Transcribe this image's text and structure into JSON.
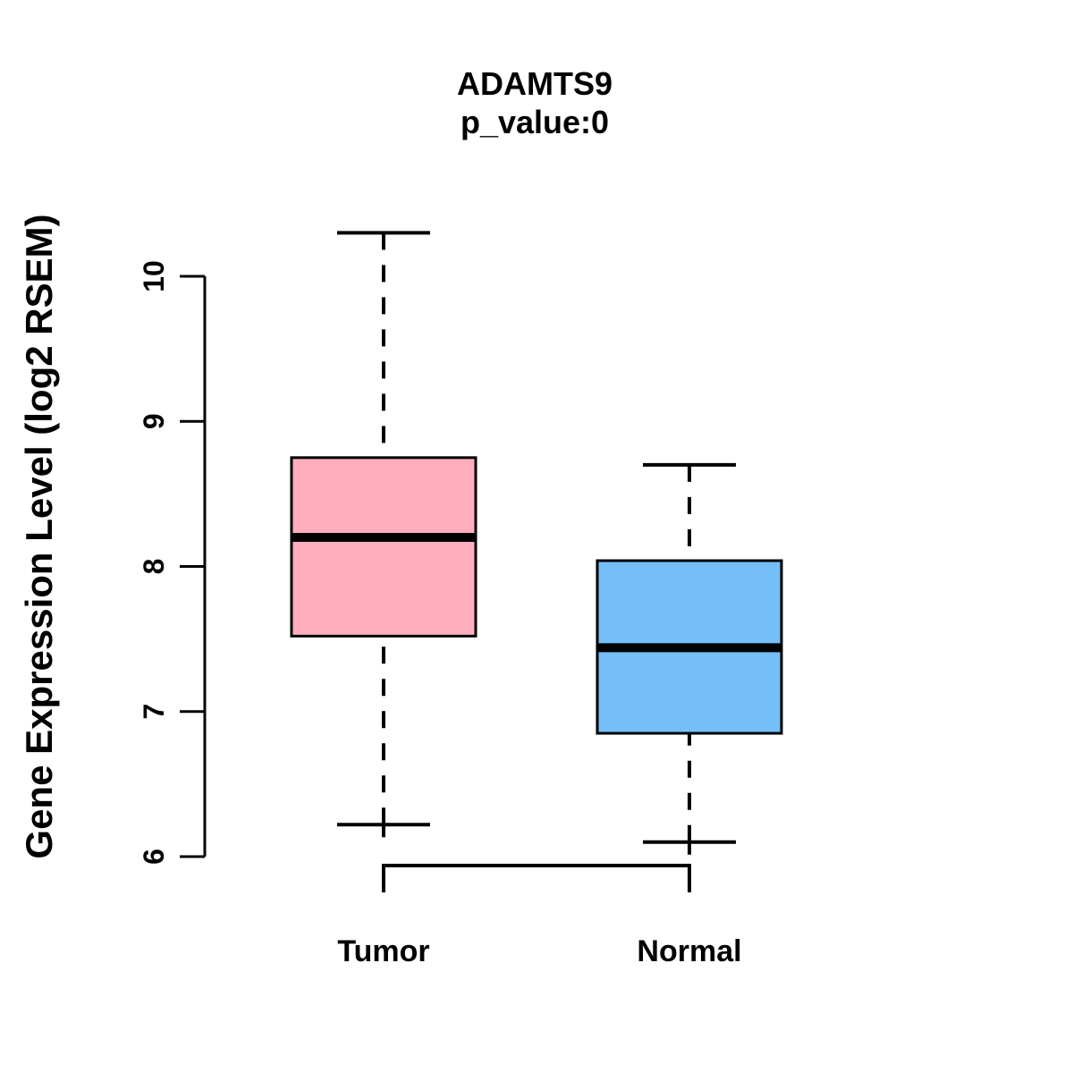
{
  "chart_data": {
    "type": "boxplot",
    "title": "ADAMTS9",
    "subtitle": "p_value:0",
    "ylabel": "Gene Expression Level (log2 RSEM)",
    "xlabel": "",
    "ylim": [
      6,
      10
    ],
    "yticks": [
      6,
      7,
      8,
      9,
      10
    ],
    "categories": [
      "Tumor",
      "Normal"
    ],
    "series": [
      {
        "name": "Tumor",
        "color": "#ffaec0",
        "whisker_low": 6.22,
        "q1": 7.52,
        "median": 8.2,
        "q3": 8.75,
        "whisker_high": 10.3
      },
      {
        "name": "Normal",
        "color": "#74bff8",
        "whisker_low": 6.1,
        "q1": 6.85,
        "median": 7.44,
        "q3": 8.04,
        "whisker_high": 8.7
      }
    ],
    "comparison_bracket": {
      "from": "Tumor",
      "to": "Normal"
    },
    "grid": false,
    "legend": false,
    "stroke_color": "#000000",
    "background_color": "#ffffff"
  }
}
